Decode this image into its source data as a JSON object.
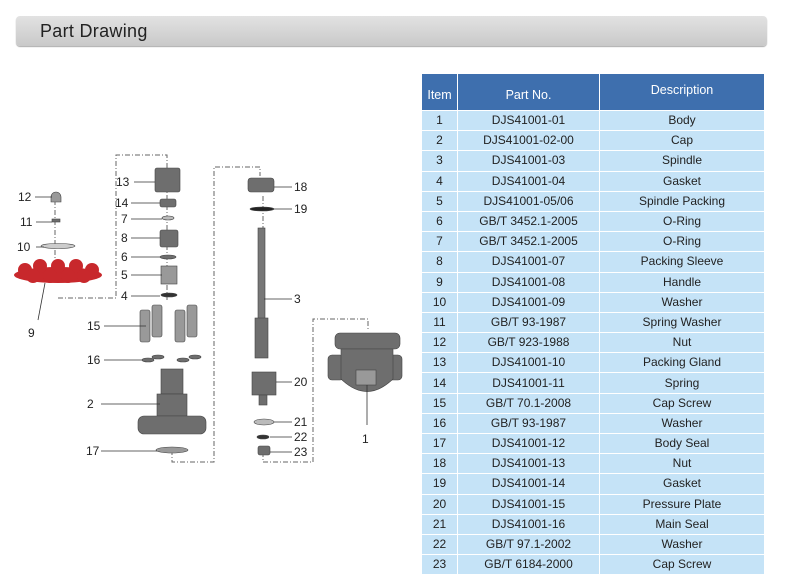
{
  "header": {
    "title": "Part Drawing"
  },
  "table": {
    "columns": [
      "Item",
      "Part No.",
      "Description"
    ],
    "rows": [
      [
        "1",
        "DJS41001-01",
        "Body"
      ],
      [
        "2",
        "DJS41001-02-00",
        "Cap"
      ],
      [
        "3",
        "DJS41001-03",
        "Spindle"
      ],
      [
        "4",
        "DJS41001-04",
        "Gasket"
      ],
      [
        "5",
        "DJS41001-05/06",
        "Spindle Packing"
      ],
      [
        "6",
        "GB/T 3452.1-2005",
        "O-Ring"
      ],
      [
        "7",
        "GB/T 3452.1-2005",
        "O-Ring"
      ],
      [
        "8",
        "DJS41001-07",
        "Packing Sleeve"
      ],
      [
        "9",
        "DJS41001-08",
        "Handle"
      ],
      [
        "10",
        "DJS41001-09",
        "Washer"
      ],
      [
        "11",
        "GB/T 93-1987",
        "Spring Washer"
      ],
      [
        "12",
        "GB/T 923-1988",
        "Nut"
      ],
      [
        "13",
        "DJS41001-10",
        "Packing Gland"
      ],
      [
        "14",
        "DJS41001-11",
        "Spring"
      ],
      [
        "15",
        "GB/T 70.1-2008",
        "Cap Screw"
      ],
      [
        "16",
        "GB/T 93-1987",
        "Washer"
      ],
      [
        "17",
        "DJS41001-12",
        "Body Seal"
      ],
      [
        "18",
        "DJS41001-13",
        "Nut"
      ],
      [
        "19",
        "DJS41001-14",
        "Gasket"
      ],
      [
        "20",
        "DJS41001-15",
        "Pressure Plate"
      ],
      [
        "21",
        "DJS41001-16",
        "Main Seal"
      ],
      [
        "22",
        "GB/T 97.1-2002",
        "Washer"
      ],
      [
        "23",
        "GB/T 6184-2000",
        "Cap Screw"
      ]
    ]
  },
  "drawing": {
    "callouts": [
      "1",
      "2",
      "3",
      "4",
      "5",
      "6",
      "7",
      "8",
      "9",
      "10",
      "11",
      "12",
      "13",
      "14",
      "15",
      "16",
      "17",
      "18",
      "19",
      "20",
      "21",
      "22",
      "23"
    ],
    "handle_color": "#c8282c"
  }
}
